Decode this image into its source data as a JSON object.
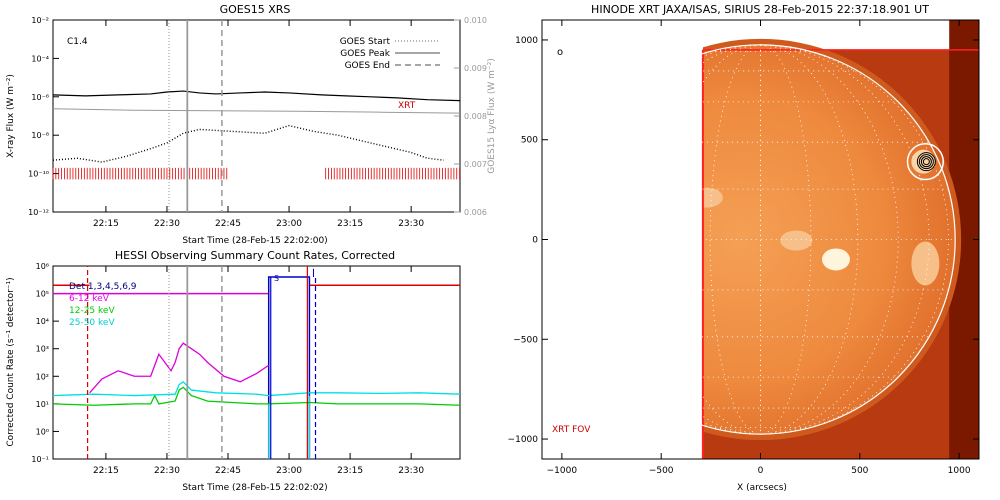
{
  "chart_data": [
    {
      "panel": "goes",
      "type": "line",
      "title": "GOES15 XRS",
      "xlabel": "Start Time (28-Feb-15 22:02:00)",
      "ylabel": "X-ray Flux (W m⁻²)",
      "ylabel_right": "GOES15 Lyα Flux (W m⁻²)",
      "x_ticks": [
        "22:15",
        "22:30",
        "22:45",
        "23:00",
        "23:15",
        "23:30"
      ],
      "x_tick_minutes": [
        13,
        28,
        43,
        58,
        73,
        88
      ],
      "xlim_minutes": [
        0,
        100
      ],
      "y_log_range": [
        -12,
        -2
      ],
      "y_ticks": [
        "10⁻²",
        "10⁻⁴",
        "10⁻⁶",
        "10⁻⁸",
        "10⁻¹⁰",
        "10⁻¹²"
      ],
      "y_tick_exps": [
        -2,
        -4,
        -6,
        -8,
        -10,
        -12
      ],
      "y2_ticks": [
        "0.010",
        "0.009",
        "0.008",
        "0.007",
        "0.006"
      ],
      "y2_tick_values": [
        0.01,
        0.009,
        0.008,
        0.007,
        0.006
      ],
      "y2_range": [
        0.006,
        0.01
      ],
      "class_label": "C1.4",
      "xrt_label": "XRT",
      "legend": [
        {
          "label": "GOES Start",
          "style": "dotted"
        },
        {
          "label": "GOES Peak",
          "style": "solid"
        },
        {
          "label": "GOES End",
          "style": "dashed"
        }
      ],
      "goes_start_min": 28.5,
      "goes_peak_min": 33,
      "goes_end_min": 41.5,
      "series": [
        {
          "name": "long",
          "color": "#000000",
          "x": [
            0,
            8,
            16,
            24,
            28,
            32,
            36,
            40,
            46,
            52,
            58,
            66,
            72,
            78,
            84,
            92,
            100
          ],
          "y_log": [
            -5.9,
            -5.95,
            -5.9,
            -5.85,
            -5.75,
            -5.7,
            -5.8,
            -5.85,
            -5.8,
            -5.75,
            -5.8,
            -5.9,
            -5.95,
            -6.0,
            -6.05,
            -6.15,
            -6.2
          ]
        },
        {
          "name": "short",
          "color": "#000000",
          "x": [
            0,
            6,
            12,
            18,
            24,
            28,
            32,
            36,
            44,
            52,
            58,
            64,
            70,
            76,
            82,
            88,
            92,
            96
          ],
          "y_log": [
            -9.3,
            -9.2,
            -9.4,
            -9.1,
            -8.7,
            -8.4,
            -7.9,
            -7.7,
            -7.8,
            -7.9,
            -7.5,
            -7.8,
            -8.0,
            -8.3,
            -8.6,
            -8.9,
            -9.2,
            -9.3
          ]
        },
        {
          "name": "lya",
          "color": "#999999",
          "x": [
            0,
            20,
            40,
            60,
            80,
            100
          ],
          "y": [
            0.00815,
            0.00812,
            0.00811,
            0.0081,
            0.00808,
            0.00806
          ]
        }
      ],
      "xrt_bar_segments_min": [
        [
          0,
          43
        ],
        [
          67,
          100
        ]
      ]
    },
    {
      "panel": "hessi",
      "type": "line",
      "title": "HESSI Observing Summary Count Rates, Corrected",
      "xlabel": "Start Time (28-Feb-15 22:02:02)",
      "ylabel": "Corrected Count Rate (s⁻¹ detector⁻¹)",
      "x_ticks": [
        "22:15",
        "22:30",
        "22:45",
        "23:00",
        "23:15",
        "23:30"
      ],
      "x_tick_minutes": [
        13,
        28,
        43,
        58,
        73,
        88
      ],
      "xlim_minutes": [
        0,
        100
      ],
      "y_log_range": [
        -1,
        6
      ],
      "y_ticks": [
        "10⁶",
        "10⁵",
        "10⁴",
        "10³",
        "10²",
        "10¹",
        "10⁰",
        "10⁻¹"
      ],
      "y_tick_exps": [
        6,
        5,
        4,
        3,
        2,
        1,
        0,
        -1
      ],
      "legend": [
        {
          "label": "Det 1,3,4,5,6,9",
          "color": "#000080"
        },
        {
          "label": "6-12 keV",
          "color": "#ee00ee"
        },
        {
          "label": "12-25 keV",
          "color": "#00cc00"
        },
        {
          "label": "25-50 keV",
          "color": "#00e0e0"
        }
      ],
      "s_label": "S",
      "series": [
        {
          "name": "6-12 keV",
          "color": "#dd00dd",
          "x": [
            9,
            12,
            16,
            20,
            24,
            25,
            26,
            27,
            29,
            30,
            31,
            32,
            34,
            36,
            38,
            42,
            46,
            50,
            53
          ],
          "y_log": [
            1.4,
            1.9,
            2.2,
            2.0,
            2.0,
            2.4,
            2.8,
            2.6,
            2.2,
            2.5,
            3.0,
            3.2,
            3.0,
            2.8,
            2.5,
            2.0,
            1.8,
            2.1,
            2.4
          ]
        },
        {
          "name": "12-25 keV",
          "color": "#00cc00",
          "x": [
            0,
            10,
            20,
            24,
            25,
            26,
            30,
            31,
            32,
            34,
            38,
            44,
            50,
            53,
            63,
            70,
            80,
            90,
            100
          ],
          "y_log": [
            1.0,
            0.95,
            1.0,
            1.0,
            1.3,
            1.0,
            1.1,
            1.5,
            1.6,
            1.3,
            1.1,
            1.05,
            1.0,
            1.0,
            1.05,
            1.0,
            1.0,
            1.0,
            0.95
          ]
        },
        {
          "name": "25-50 keV",
          "color": "#00e0e0",
          "x": [
            0,
            10,
            20,
            30,
            31,
            32,
            34,
            40,
            50,
            53,
            63,
            70,
            80,
            90,
            100
          ],
          "y_log": [
            1.3,
            1.35,
            1.3,
            1.35,
            1.7,
            1.8,
            1.5,
            1.4,
            1.35,
            1.3,
            1.4,
            1.4,
            1.38,
            1.4,
            1.35
          ]
        }
      ],
      "attenuator_level_log": 5,
      "night_start_min": 53,
      "night_end_min": 63,
      "saa_start_min": 64,
      "red_marker_min": [
        8.5,
        62.5
      ],
      "blue_marker_min": [
        53.5,
        64.5
      ]
    },
    {
      "panel": "xrt",
      "type": "heatmap",
      "title": "HINODE XRT JAXA/ISAS, SIRIUS 28-Feb-2015 22:37:18.901 UT",
      "xlabel": "X (arcsecs)",
      "ylabel": "",
      "x_ticks": [
        "−1000",
        "−500",
        "0",
        "500",
        "1000"
      ],
      "x_tick_values": [
        -1000,
        -500,
        0,
        500,
        1000
      ],
      "y_ticks": [
        "1000",
        "500",
        "0",
        "−500",
        "−1000"
      ],
      "y_tick_values": [
        1000,
        500,
        0,
        -500,
        -1000
      ],
      "xlim": [
        -1100,
        1100
      ],
      "ylim": [
        -1100,
        1100
      ],
      "solar_radius_arcsec": 980,
      "fov_label": "XRT FOV",
      "fov_x_range": [
        -290,
        1100
      ],
      "fov_y_range": [
        -1100,
        950
      ],
      "source_center": [
        830,
        390
      ],
      "source_circle_radius": 90,
      "marker_label": "o",
      "grid": true
    }
  ]
}
